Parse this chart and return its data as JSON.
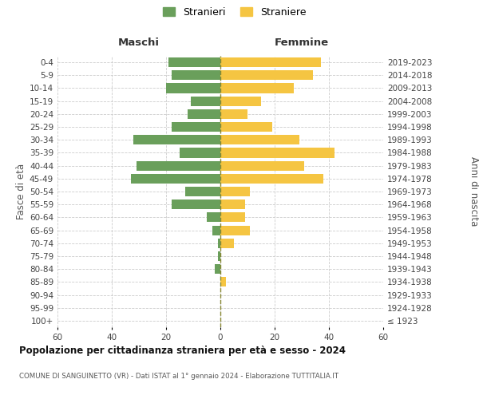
{
  "age_groups": [
    "0-4",
    "5-9",
    "10-14",
    "15-19",
    "20-24",
    "25-29",
    "30-34",
    "35-39",
    "40-44",
    "45-49",
    "50-54",
    "55-59",
    "60-64",
    "65-69",
    "70-74",
    "75-79",
    "80-84",
    "85-89",
    "90-94",
    "95-99",
    "100+"
  ],
  "birth_years": [
    "2019-2023",
    "2014-2018",
    "2009-2013",
    "2004-2008",
    "1999-2003",
    "1994-1998",
    "1989-1993",
    "1984-1988",
    "1979-1983",
    "1974-1978",
    "1969-1973",
    "1964-1968",
    "1959-1963",
    "1954-1958",
    "1949-1953",
    "1944-1948",
    "1939-1943",
    "1934-1938",
    "1929-1933",
    "1924-1928",
    "≤ 1923"
  ],
  "maschi": [
    19,
    18,
    20,
    11,
    12,
    18,
    32,
    15,
    31,
    33,
    13,
    18,
    5,
    3,
    1,
    1,
    2,
    0,
    0,
    0,
    0
  ],
  "femmine": [
    37,
    34,
    27,
    15,
    10,
    19,
    29,
    42,
    31,
    38,
    11,
    9,
    9,
    11,
    5,
    0,
    0,
    2,
    0,
    0,
    0
  ],
  "maschi_color": "#6a9f5b",
  "femmine_color": "#f5c542",
  "bg_color": "#ffffff",
  "grid_color": "#cccccc",
  "title": "Popolazione per cittadinanza straniera per età e sesso - 2024",
  "subtitle": "COMUNE DI SANGUINETTO (VR) - Dati ISTAT al 1° gennaio 2024 - Elaborazione TUTTITALIA.IT",
  "xlabel_left": "Maschi",
  "xlabel_right": "Femmine",
  "ylabel_left": "Fasce di età",
  "ylabel_right": "Anni di nascita",
  "legend_maschi": "Stranieri",
  "legend_femmine": "Straniere",
  "xlim": 60,
  "bar_height": 0.75
}
